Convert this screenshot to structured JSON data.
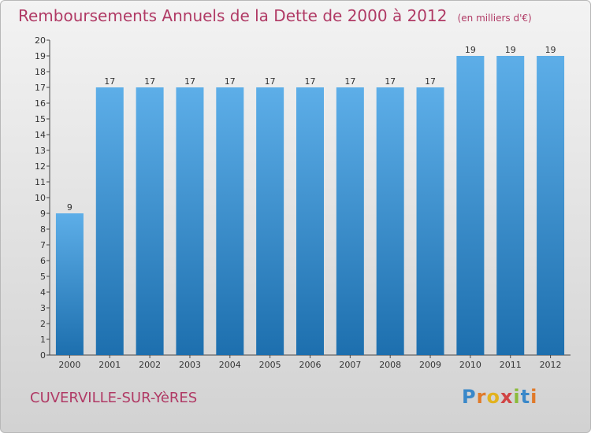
{
  "header": {
    "title": "Remboursements Annuels de la Dette de 2000 à 2012",
    "unit": "(en milliers d'€)"
  },
  "footer": {
    "commune": "CUVERVILLE-SUR-YèRES",
    "logo": "Proxiti"
  },
  "colors": {
    "title": "#b03a65",
    "bar_light": "#5daee8",
    "bar_dark": "#1d6fae"
  },
  "chart_data": {
    "type": "bar",
    "title": "Remboursements Annuels de la Dette de 2000 à 2012",
    "subtitle": "(en milliers d'€)",
    "categories": [
      "2000",
      "2001",
      "2002",
      "2003",
      "2004",
      "2005",
      "2006",
      "2007",
      "2008",
      "2009",
      "2010",
      "2011",
      "2012"
    ],
    "values": [
      9,
      17,
      17,
      17,
      17,
      17,
      17,
      17,
      17,
      17,
      19,
      19,
      19
    ],
    "ylim": [
      0,
      20
    ],
    "yticks": [
      0,
      1,
      2,
      3,
      4,
      5,
      6,
      7,
      8,
      9,
      10,
      11,
      12,
      13,
      14,
      15,
      16,
      17,
      18,
      19,
      20
    ],
    "xlabel": "",
    "ylabel": "",
    "grid": false,
    "data_labels": true
  }
}
